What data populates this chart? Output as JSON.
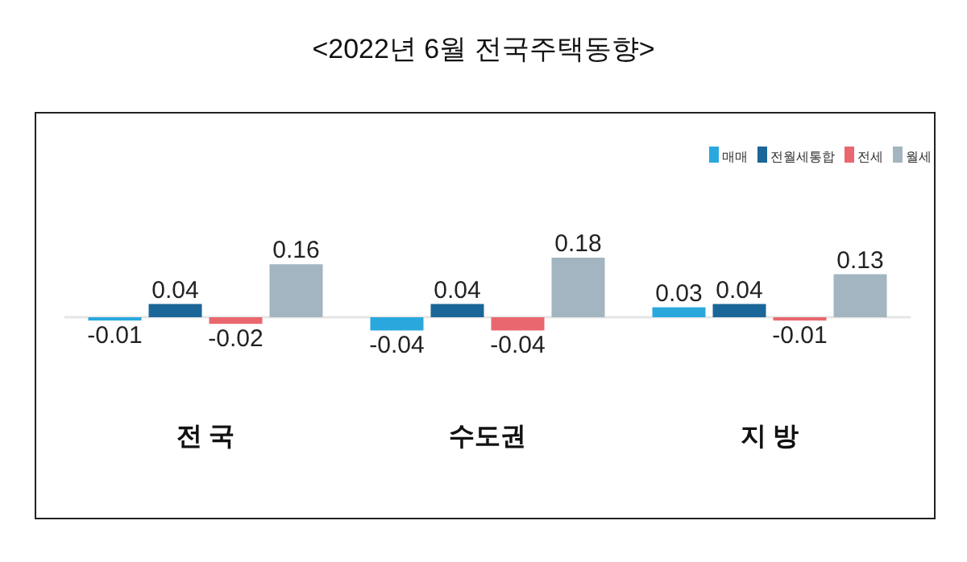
{
  "chart_data": {
    "type": "bar",
    "title": "<2022년 6월 전국주택동향>",
    "categories": [
      "전 국",
      "수도권",
      "지 방"
    ],
    "series": [
      {
        "name": "매매",
        "color": "#2aa8de",
        "values": [
          -0.01,
          -0.04,
          0.03
        ]
      },
      {
        "name": "전월세통합",
        "color": "#1b6698",
        "values": [
          0.04,
          0.04,
          0.04
        ]
      },
      {
        "name": "전세",
        "color": "#e9676f",
        "values": [
          -0.02,
          -0.04,
          -0.01
        ]
      },
      {
        "name": "월세",
        "color": "#a2b5c0",
        "values": [
          0.16,
          0.18,
          0.13
        ]
      }
    ],
    "data_labels": true,
    "legend": "top right"
  }
}
